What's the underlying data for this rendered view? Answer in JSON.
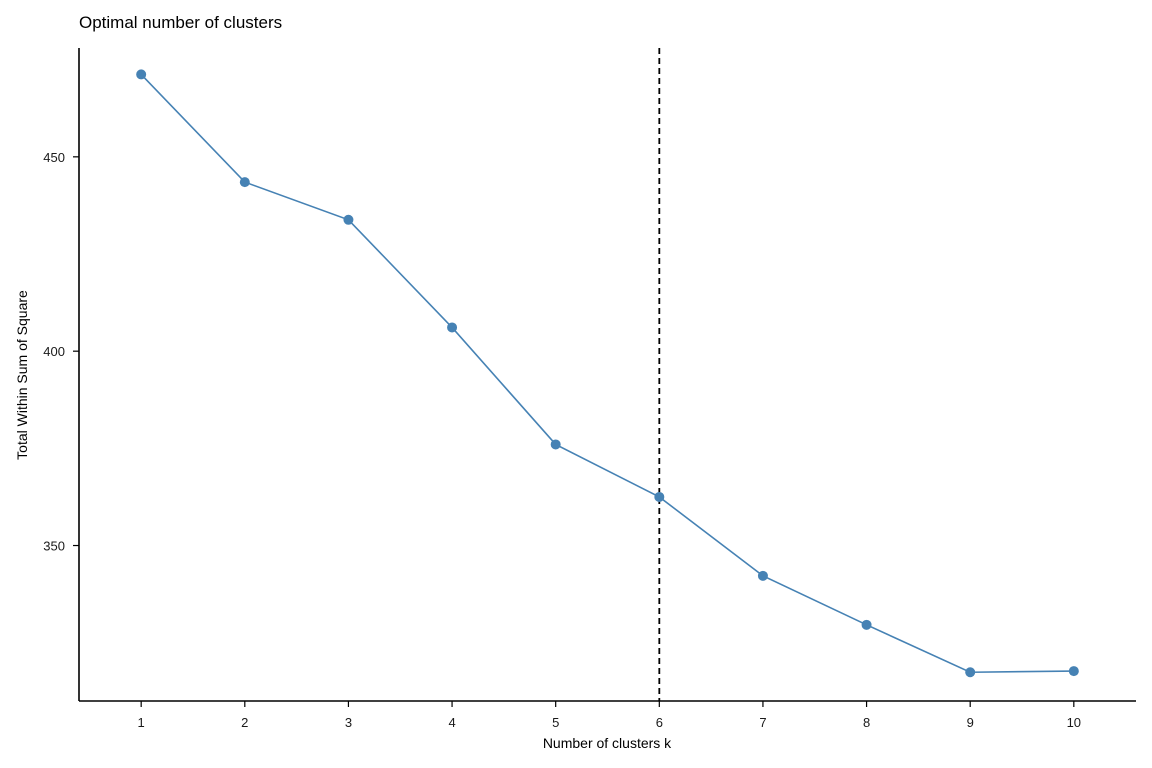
{
  "chart_data": {
    "type": "line",
    "title": "Optimal number of clusters",
    "xlabel": "Number of clusters k",
    "ylabel": "Total Within Sum of Square",
    "x": [
      1,
      2,
      3,
      4,
      5,
      6,
      7,
      8,
      9,
      10
    ],
    "series": [
      {
        "values": [
          471.2,
          443.5,
          433.8,
          406.1,
          376.0,
          362.5,
          342.2,
          329.6,
          317.4,
          317.7
        ]
      }
    ],
    "xlim": [
      0.4,
      10.6
    ],
    "ylim": [
      310,
      478
    ],
    "yticks": [
      350,
      400,
      450
    ],
    "reference_line": {
      "x": 6,
      "style": "dashed",
      "color": "#000000"
    },
    "grid": false,
    "legend": "none",
    "colors": {
      "series": "#4682B4",
      "axis": "#000000"
    }
  }
}
